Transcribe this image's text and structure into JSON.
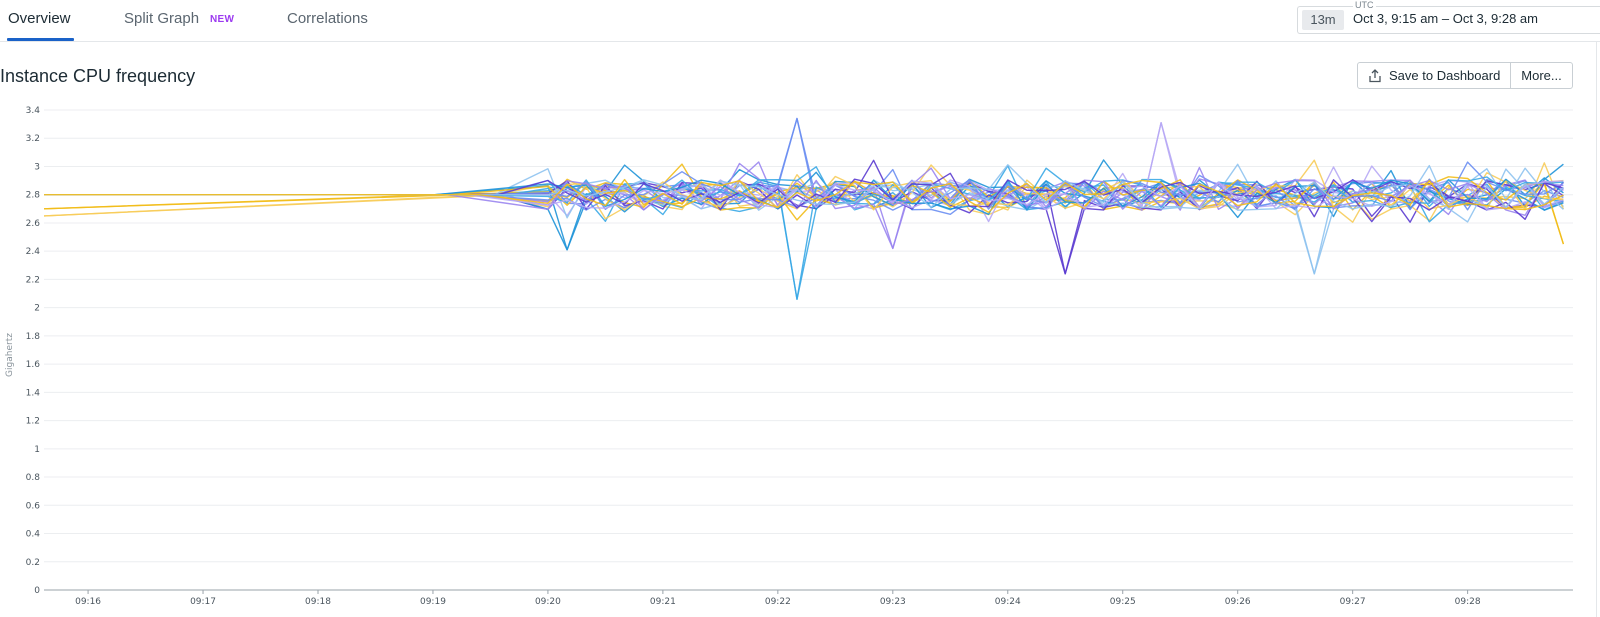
{
  "tabs": [
    {
      "label": "Overview",
      "active": true
    },
    {
      "label": "Split Graph",
      "badge": "NEW"
    },
    {
      "label": "Correlations"
    }
  ],
  "time_range": {
    "timezone": "UTC",
    "duration": "13m",
    "range": "Oct 3, 9:15 am – Oct 3, 9:28 am"
  },
  "widget": {
    "title": "Instance CPU frequency",
    "save_label": "Save to Dashboard",
    "more_label": "More..."
  },
  "colors": {
    "accent": "#1a62c8",
    "badge": "#9c3bf0",
    "series_palette": [
      "#f2bc1a",
      "#f7cc5a",
      "#1e93d8",
      "#3aa8e6",
      "#6a8ef2",
      "#9a85f0",
      "#5b3bd0",
      "#b7a8f5",
      "#8fc3ef"
    ]
  },
  "chart_data": {
    "type": "line",
    "ylabel": "Gigahertz",
    "ylim": [
      0,
      3.4
    ],
    "yticks": [
      "0",
      "0.2",
      "0.4",
      "0.6",
      "0.8",
      "1",
      "1.2",
      "1.4",
      "1.6",
      "1.8",
      "2",
      "2.2",
      "2.4",
      "2.6",
      "2.8",
      "3",
      "3.2",
      "3.4"
    ],
    "xticks": [
      "09:16",
      "09:17",
      "09:18",
      "09:19",
      "09:20",
      "09:21",
      "09:22",
      "09:23",
      "09:24",
      "09:25",
      "09:26",
      "09:27",
      "09:28"
    ],
    "x_start": "09:15:37",
    "x_end": "09:28:55",
    "grid": true,
    "legend": "none",
    "series_count": 28,
    "baseline_value": 2.8,
    "active_from": "09:20",
    "typical_range": [
      2.6,
      3.05
    ],
    "extreme_points": [
      {
        "time": "09:15:37",
        "value": 2.7
      },
      {
        "time": "09:15:42",
        "value": 2.65
      },
      {
        "time": "09:20:14",
        "value": 2.41
      },
      {
        "time": "09:22:15",
        "value": 2.06
      },
      {
        "time": "09:22:15",
        "value": 3.34
      },
      {
        "time": "09:23:00",
        "value": 2.42
      },
      {
        "time": "09:24:30",
        "value": 2.24
      },
      {
        "time": "09:25:20",
        "value": 3.31
      },
      {
        "time": "09:26:40",
        "value": 2.24
      },
      {
        "time": "09:28:53",
        "value": 2.45
      }
    ]
  }
}
